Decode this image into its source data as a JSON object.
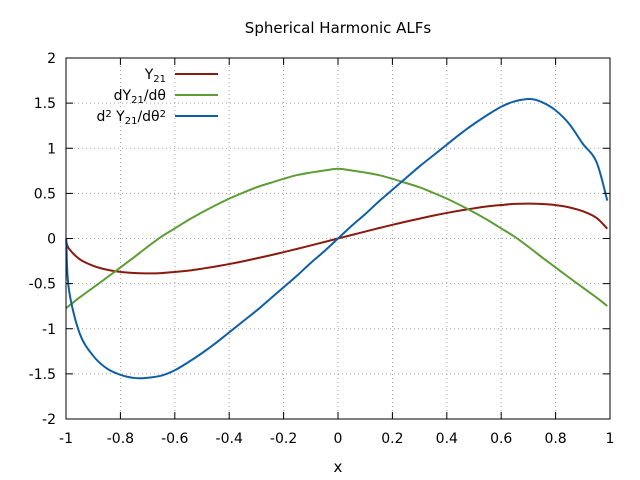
{
  "chart_data": {
    "type": "line",
    "title": "Spherical Harmonic ALFs",
    "xlabel": "x",
    "ylabel": "",
    "xlim": [
      -1,
      1
    ],
    "ylim": [
      -2,
      2
    ],
    "grid": true,
    "legend_position": "top-left",
    "x_ticks": [
      -1,
      -0.8,
      -0.6,
      -0.4,
      -0.2,
      0,
      0.2,
      0.4,
      0.6,
      0.8,
      1
    ],
    "x_tick_labels": [
      "-1",
      "-0.8",
      "-0.6",
      "-0.4",
      "-0.2",
      "0",
      "0.2",
      "0.4",
      "0.6",
      "0.8",
      "1"
    ],
    "y_ticks": [
      -2,
      -1.5,
      -1,
      -0.5,
      0,
      0.5,
      1,
      1.5,
      2
    ],
    "y_tick_labels": [
      "-2",
      "-1.5",
      "-1",
      "-0.5",
      "0",
      "0.5",
      "1",
      "1.5",
      "2"
    ],
    "x": [
      -0.999,
      -0.99,
      -0.95,
      -0.9,
      -0.85,
      -0.8,
      -0.75,
      -0.7071,
      -0.65,
      -0.6,
      -0.55,
      -0.5,
      -0.45,
      -0.4,
      -0.35,
      -0.3,
      -0.25,
      -0.2,
      -0.15,
      -0.1,
      -0.05,
      0,
      0.05,
      0.1,
      0.15,
      0.2,
      0.25,
      0.3,
      0.35,
      0.4,
      0.45,
      0.5,
      0.55,
      0.6,
      0.65,
      0.7071,
      0.75,
      0.8,
      0.85,
      0.9,
      0.95,
      0.99
    ],
    "series": [
      {
        "name": "Y21",
        "label_parts": [
          {
            "t": "Y",
            "s": ""
          },
          {
            "t": "21",
            "s": "sub"
          }
        ],
        "color": "#8b1a0e",
        "values": [
          -0.0346,
          -0.1087,
          -0.2288,
          -0.302,
          -0.3451,
          -0.3702,
          -0.3821,
          -0.3863,
          -0.3834,
          -0.3707,
          -0.3561,
          -0.3345,
          -0.3102,
          -0.2831,
          -0.2534,
          -0.2204,
          -0.1871,
          -0.1514,
          -0.1148,
          -0.0769,
          -0.0386,
          0.0,
          0.0386,
          0.0769,
          0.1148,
          0.1514,
          0.1871,
          0.2204,
          0.2534,
          0.2831,
          0.3102,
          0.3345,
          0.3561,
          0.3707,
          0.3834,
          0.3863,
          0.3821,
          0.3702,
          0.3451,
          0.302,
          0.2288,
          0.1087
        ]
      },
      {
        "name": "dY21/dθ",
        "label_parts": [
          {
            "t": "dY",
            "s": ""
          },
          {
            "t": "21",
            "s": "sub"
          },
          {
            "t": "/dθ",
            "s": ""
          }
        ],
        "color": "#5e9c36",
        "values": [
          -0.771,
          -0.748,
          -0.6534,
          -0.5437,
          -0.4335,
          -0.321,
          -0.2082,
          -0.1079,
          0.0184,
          0.1115,
          0.2046,
          0.2894,
          0.3684,
          0.442,
          0.5062,
          0.5667,
          0.6148,
          0.6617,
          0.7029,
          0.7306,
          0.7532,
          0.7725,
          0.7532,
          0.7306,
          0.7029,
          0.6617,
          0.6148,
          0.5667,
          0.5062,
          0.442,
          0.3684,
          0.2894,
          0.2046,
          0.1115,
          0.0184,
          -0.1079,
          -0.2082,
          -0.321,
          -0.4335,
          -0.5437,
          -0.6534,
          -0.748
        ]
      },
      {
        "name": "d2 Y21/dθ2",
        "label_parts": [
          {
            "t": "d",
            "s": ""
          },
          {
            "t": "2",
            "s": "sup"
          },
          {
            "t": " Y",
            "s": ""
          },
          {
            "t": "21",
            "s": "sub"
          },
          {
            "t": "/dθ",
            "s": ""
          },
          {
            "t": "2",
            "s": "sup"
          }
        ],
        "color": "#0e5fa8",
        "values": [
          0.0,
          -0.55,
          -1.05,
          -1.3,
          -1.44,
          -1.51,
          -1.545,
          -1.5451,
          -1.52,
          -1.46,
          -1.37,
          -1.27,
          -1.16,
          -1.04,
          -0.92,
          -0.8,
          -0.67,
          -0.54,
          -0.41,
          -0.27,
          -0.14,
          0.0,
          0.14,
          0.27,
          0.41,
          0.54,
          0.67,
          0.8,
          0.92,
          1.04,
          1.16,
          1.27,
          1.37,
          1.46,
          1.52,
          1.5451,
          1.51,
          1.42,
          1.27,
          1.05,
          0.85,
          0.42
        ]
      }
    ]
  }
}
